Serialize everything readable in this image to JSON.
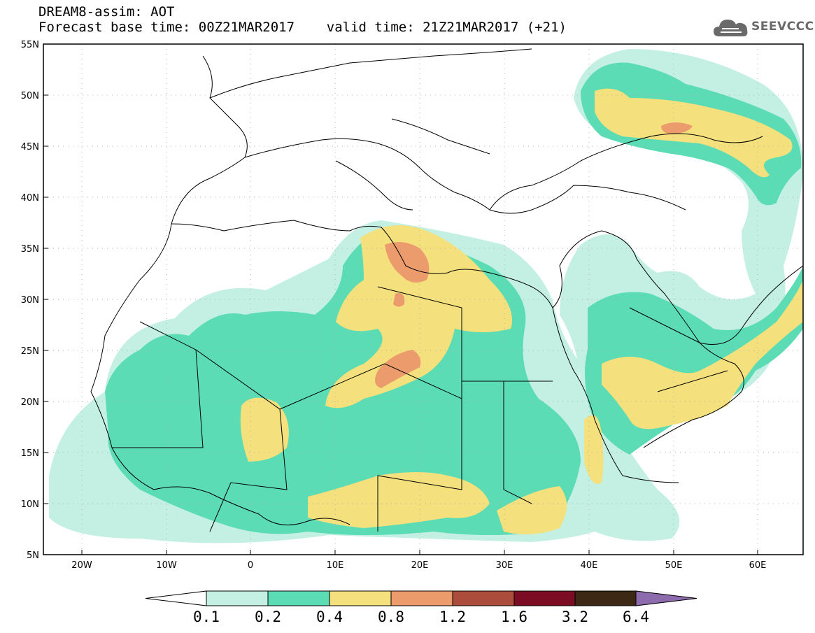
{
  "header": {
    "line1": "DREAM8-assim: AOT",
    "line2": "Forecast base time: 00Z21MAR2017    valid time: 21Z21MAR2017 (+21)"
  },
  "logo": {
    "text": "SEEVCCC",
    "icon": "cloud-icon"
  },
  "map": {
    "lon_range": [
      -25,
      65
    ],
    "lat_range": [
      5,
      55
    ],
    "lat_labels": [
      "55N",
      "50N",
      "45N",
      "40N",
      "35N",
      "30N",
      "25N",
      "20N",
      "15N",
      "10N",
      "5N"
    ],
    "lon_labels": [
      "20W",
      "10W",
      "0",
      "10E",
      "20E",
      "30E",
      "40E",
      "50E",
      "60E"
    ],
    "gridlines": "dotted"
  },
  "colorbar": {
    "labels": [
      "0.1",
      "0.2",
      "0.4",
      "0.8",
      "1.2",
      "1.6",
      "3.2",
      "6.4"
    ],
    "colors": [
      "#ffffff",
      "#c4f0e4",
      "#5cdcb4",
      "#f4e07c",
      "#ec9c6c",
      "#ac4c3c",
      "#7c0c24",
      "#3c2814",
      "#8c6cac"
    ]
  }
}
